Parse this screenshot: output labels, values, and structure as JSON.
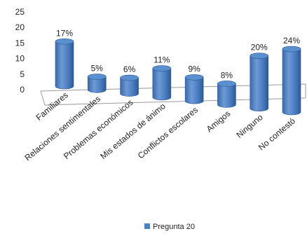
{
  "chart_data": {
    "type": "bar",
    "style": "3d-cylinder",
    "categories": [
      "Familiares",
      "Relaciones sentimentales",
      "Problemas económicos",
      "Mis estados de ánimo",
      "Conflictos escolares",
      "Amigos",
      "Ninguno",
      "No contestó"
    ],
    "series": [
      {
        "name": "Pregunta 20",
        "values": [
          17,
          5,
          6,
          11,
          9,
          8,
          20,
          24
        ],
        "data_labels": [
          "17%",
          "5%",
          "6%",
          "11%",
          "9%",
          "8%",
          "20%",
          "24%"
        ]
      }
    ],
    "ylim": [
      0,
      25
    ],
    "yticks": [
      "0",
      "5",
      "10",
      "15",
      "20",
      "25"
    ],
    "grid": false,
    "legend": "bottom",
    "colors": {
      "bar": "#4f81bd",
      "bar_dark": "#2c5a93",
      "bar_top": "#5a8fd0",
      "floor_line": "#9a9a9a"
    }
  }
}
